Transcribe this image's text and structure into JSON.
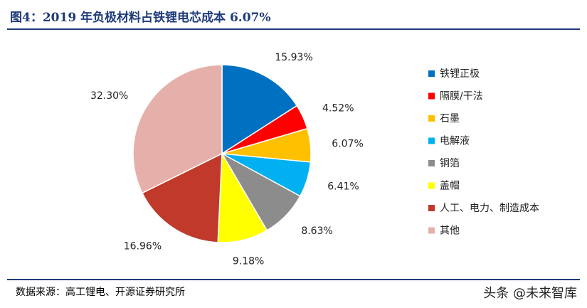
{
  "title": "图4：2019 年负极材料占铁锂电芯成本 6.07%",
  "source": "数据来源：高工锂电、开源证券研究所",
  "watermark": "头条 @未来智库",
  "chart_data": {
    "type": "pie",
    "title": "",
    "legend_position": "right",
    "slices": [
      {
        "name": "铁锂正极",
        "value": 15.93,
        "label": "15.93%",
        "color": "#0070c0"
      },
      {
        "name": "隔膜/干法",
        "value": 4.52,
        "label": "4.52%",
        "color": "#ff0000"
      },
      {
        "name": "石墨",
        "value": 6.07,
        "label": "6.07%",
        "color": "#ffc000"
      },
      {
        "name": "电解液",
        "value": 6.41,
        "label": "6.41%",
        "color": "#00b0f0"
      },
      {
        "name": "铜箔",
        "value": 8.63,
        "label": "8.63%",
        "color": "#8c8c8c"
      },
      {
        "name": "盖帽",
        "value": 9.18,
        "label": "9.18%",
        "color": "#ffff00"
      },
      {
        "name": "人工、电力、制造成本",
        "value": 16.96,
        "label": "16.96%",
        "color": "#c0392b"
      },
      {
        "name": "其他",
        "value": 32.3,
        "label": "32.30%",
        "color": "#e6b0aa"
      }
    ]
  }
}
